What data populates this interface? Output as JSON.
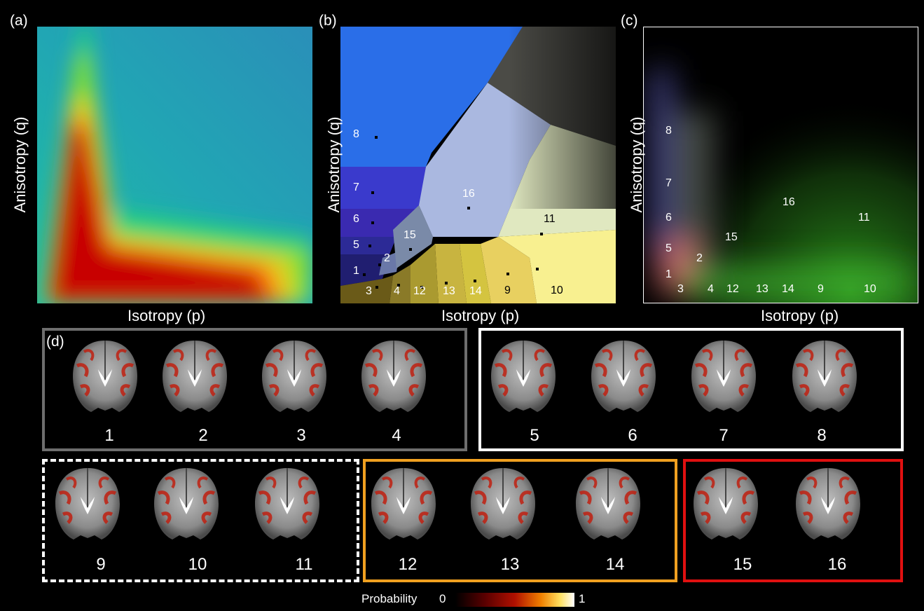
{
  "panels": {
    "a": {
      "label": "(a)",
      "xlabel": "Isotropy (p)",
      "ylabel": "Anisotropy (q)"
    },
    "b": {
      "label": "(b)",
      "xlabel": "Isotropy (p)",
      "ylabel": "Anisotropy (q)",
      "regions": [
        "1",
        "2",
        "3",
        "4",
        "5",
        "6",
        "7",
        "8",
        "9",
        "10",
        "11",
        "12",
        "13",
        "14",
        "15",
        "16"
      ]
    },
    "c": {
      "label": "(c)",
      "xlabel": "Isotropy (p)",
      "ylabel": "Anisotropy (q)",
      "regions": [
        "1",
        "2",
        "3",
        "4",
        "5",
        "6",
        "7",
        "8",
        "9",
        "10",
        "11",
        "12",
        "13",
        "14",
        "15",
        "16"
      ]
    },
    "d": {
      "label": "(d)"
    }
  },
  "groups": [
    {
      "name": "gray",
      "color": "#6e6e6e",
      "style": "solid",
      "items": [
        "1",
        "2",
        "3",
        "4"
      ]
    },
    {
      "name": "white",
      "color": "#ffffff",
      "style": "solid",
      "items": [
        "5",
        "6",
        "7",
        "8"
      ]
    },
    {
      "name": "dashed-white",
      "color": "#ffffff",
      "style": "dashed",
      "items": [
        "9",
        "10",
        "11"
      ]
    },
    {
      "name": "orange",
      "color": "#f0a020",
      "style": "solid",
      "items": [
        "12",
        "13",
        "14"
      ]
    },
    {
      "name": "red",
      "color": "#e01010",
      "style": "solid",
      "items": [
        "15",
        "16"
      ]
    }
  ],
  "colorbar": {
    "title": "Probability",
    "min": "0",
    "max": "1"
  }
}
